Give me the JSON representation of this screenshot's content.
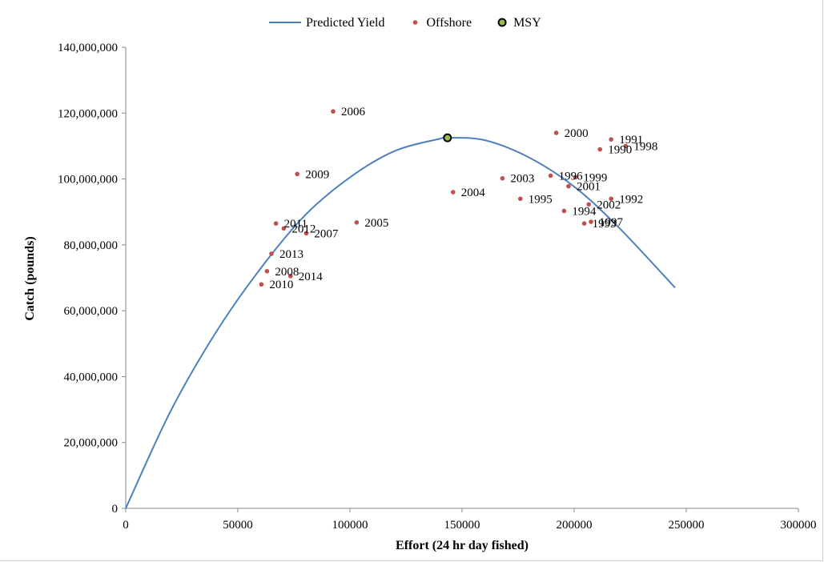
{
  "chart_data": {
    "type": "scatter",
    "title": "",
    "xlabel": "Effort (24 hr day fished)",
    "ylabel": "Catch (pounds)",
    "xlim": [
      0,
      300000
    ],
    "ylim": [
      0,
      140000000
    ],
    "x_ticks": [
      "0",
      "50000",
      "100000",
      "150000",
      "200000",
      "250000",
      "300000"
    ],
    "y_ticks": [
      "0",
      "20,000,000",
      "40,000,000",
      "60,000,000",
      "80,000,000",
      "100,000,000",
      "120,000,000",
      "140,000,000"
    ],
    "grid": false,
    "legend_position": "top",
    "legend": [
      {
        "name": "Predicted Yield",
        "kind": "line",
        "color": "#4f81bd"
      },
      {
        "name": "Offshore",
        "kind": "marker",
        "color": "#c0504d"
      },
      {
        "name": "MSY",
        "kind": "marker",
        "color": "#000000",
        "fill": "#9bbb59"
      }
    ],
    "series": [
      {
        "name": "Predicted Yield",
        "kind": "line",
        "color": "#4f81bd",
        "x": [
          0,
          20000,
          40000,
          60000,
          80000,
          100000,
          120000,
          140000,
          143500,
          160000,
          180000,
          200000,
          220000,
          245000
        ],
        "y": [
          0,
          29500000,
          53200000,
          72700000,
          89000000,
          100500000,
          108500000,
          112200000,
          112500000,
          111800000,
          106500000,
          97700000,
          85200000,
          67000000
        ]
      },
      {
        "name": "Offshore",
        "kind": "scatter",
        "color": "#c0504d",
        "points": [
          {
            "label": "1991",
            "x": 216500,
            "y": 112000000
          },
          {
            "label": "1998",
            "x": 223000,
            "y": 110000000
          },
          {
            "label": "1990",
            "x": 211500,
            "y": 109000000
          },
          {
            "label": "2000",
            "x": 192000,
            "y": 114000000
          },
          {
            "label": "1996",
            "x": 189500,
            "y": 101000000
          },
          {
            "label": "1999",
            "x": 200500,
            "y": 100500000
          },
          {
            "label": "2001",
            "x": 197500,
            "y": 97800000
          },
          {
            "label": "2003",
            "x": 168000,
            "y": 100200000
          },
          {
            "label": "2004",
            "x": 146000,
            "y": 96000000
          },
          {
            "label": "1995",
            "x": 176000,
            "y": 94000000
          },
          {
            "label": "1992",
            "x": 216500,
            "y": 94000000
          },
          {
            "label": "2002",
            "x": 206500,
            "y": 92300000
          },
          {
            "label": "1994",
            "x": 195500,
            "y": 90300000
          },
          {
            "label": "1993",
            "x": 204500,
            "y": 86500000
          },
          {
            "label": "1997",
            "x": 207500,
            "y": 87000000
          },
          {
            "label": "2006",
            "x": 92500,
            "y": 120500000
          },
          {
            "label": "2009",
            "x": 76500,
            "y": 101500000
          },
          {
            "label": "2005",
            "x": 103000,
            "y": 86800000
          },
          {
            "label": "2011",
            "x": 67000,
            "y": 86500000
          },
          {
            "label": "2012",
            "x": 70500,
            "y": 85000000
          },
          {
            "label": "2007",
            "x": 80500,
            "y": 83500000
          },
          {
            "label": "2013",
            "x": 65000,
            "y": 77300000
          },
          {
            "label": "2008",
            "x": 63000,
            "y": 72000000
          },
          {
            "label": "2014",
            "x": 73500,
            "y": 70500000
          },
          {
            "label": "2010",
            "x": 60500,
            "y": 68000000
          }
        ]
      },
      {
        "name": "MSY",
        "kind": "scatter",
        "color": "#000000",
        "fill": "#9bbb59",
        "points": [
          {
            "x": 143500,
            "y": 112500000
          }
        ]
      }
    ]
  }
}
